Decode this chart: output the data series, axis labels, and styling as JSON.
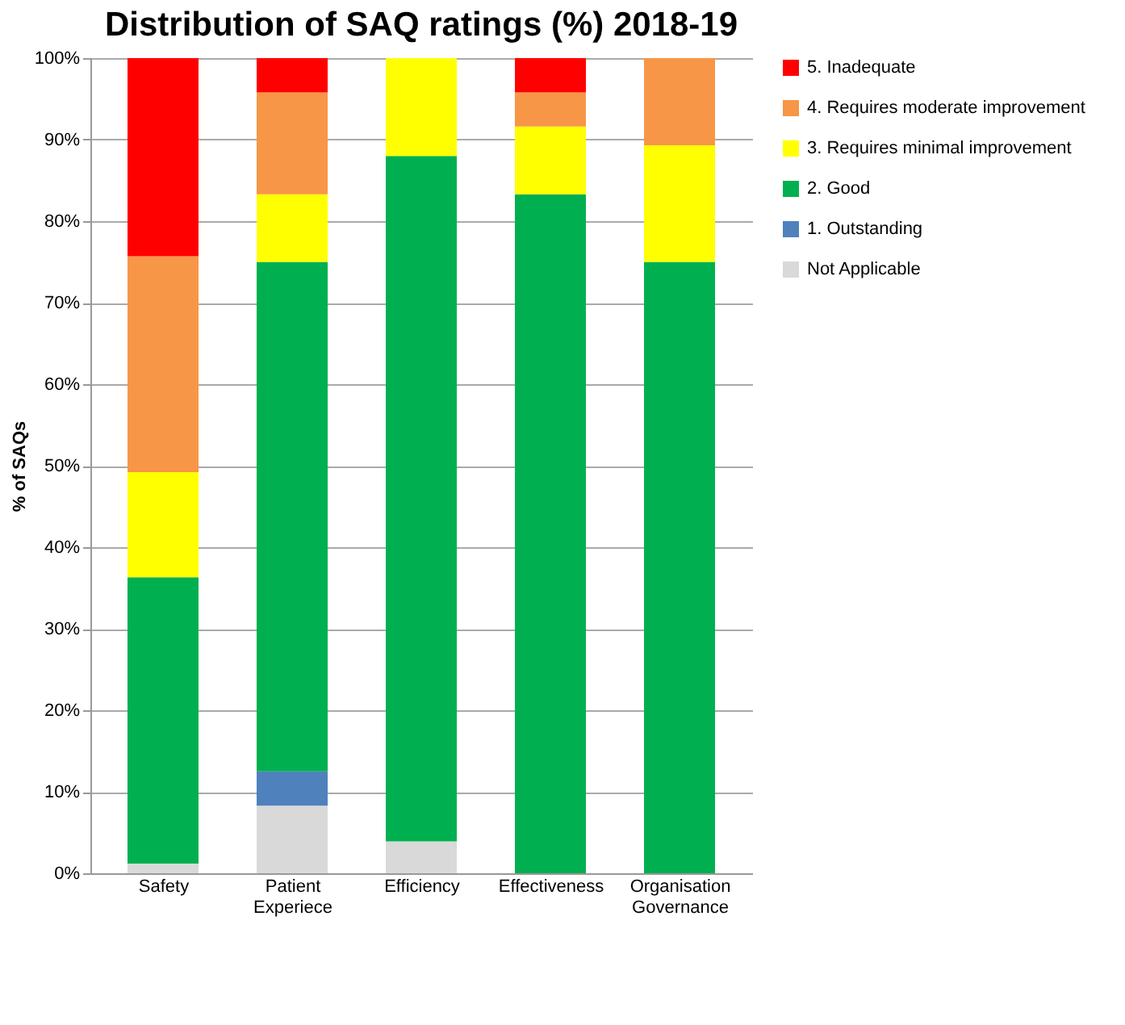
{
  "chart_data": {
    "type": "bar",
    "title": "Distribution of SAQ ratings (%) 2018-19",
    "ylabel": "% of SAQs",
    "categories": [
      "Safety",
      "Patient Experiece",
      "Efficiency",
      "Effectiveness",
      "Organisation Governance"
    ],
    "stacked": true,
    "series": [
      {
        "name": "Not Applicable",
        "color": "#d9d9d9",
        "values": [
          1.2,
          8.3,
          3.9,
          null,
          null
        ]
      },
      {
        "name": "1. Outstanding",
        "color": "#4f81bd",
        "values": [
          null,
          4.2,
          null,
          null,
          null
        ]
      },
      {
        "name": "2. Good",
        "color": "#00b050",
        "values": [
          35.1,
          62.5,
          84.1,
          83.3,
          75
        ]
      },
      {
        "name": "3. Requires minimal improvement",
        "color": "#ffff00",
        "values": [
          12.9,
          8.3,
          12.0,
          8.3,
          14.3
        ]
      },
      {
        "name": "4. Requires moderate improvement",
        "color": "#f79646",
        "values": [
          26.5,
          12.5,
          null,
          4.2,
          10.7
        ]
      },
      {
        "name": "5. Inadequate",
        "color": "#ff0000",
        "values": [
          24.3,
          4.2,
          null,
          4.2,
          null
        ]
      }
    ],
    "ylim": [
      0,
      100
    ],
    "yticks": [
      {
        "value": 0,
        "label": "0%"
      },
      {
        "value": 10,
        "label": "10%"
      },
      {
        "value": 20,
        "label": "20%"
      },
      {
        "value": 30,
        "label": "30%"
      },
      {
        "value": 40,
        "label": "40%"
      },
      {
        "value": 50,
        "label": "50%"
      },
      {
        "value": 60,
        "label": "60%"
      },
      {
        "value": 70,
        "label": "70%"
      },
      {
        "value": 80,
        "label": "80%"
      },
      {
        "value": 90,
        "label": "90%"
      },
      {
        "value": 100,
        "label": "100%"
      }
    ],
    "grid": "y",
    "legend": "right"
  }
}
